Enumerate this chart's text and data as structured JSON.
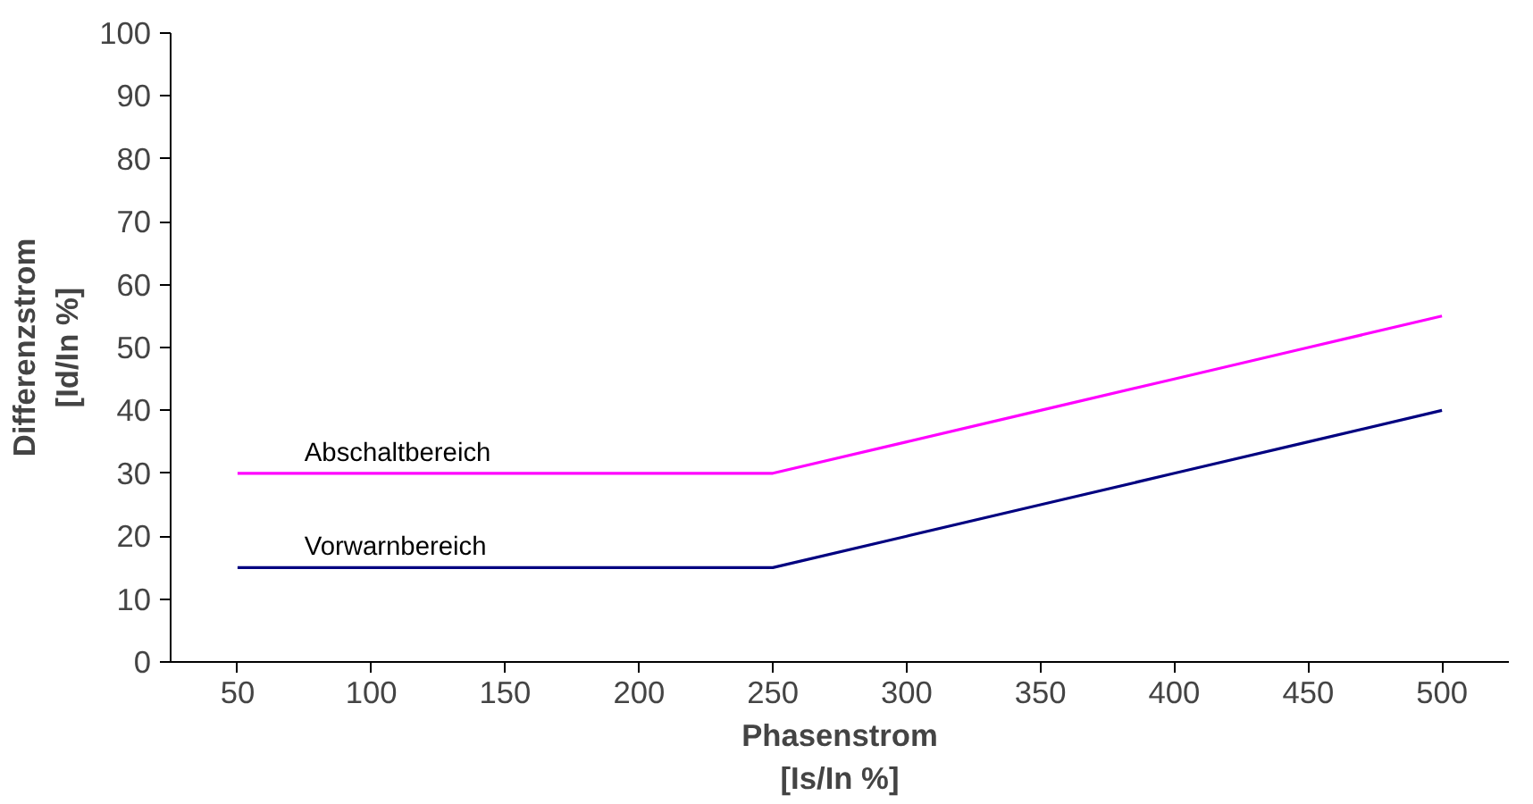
{
  "chart_data": {
    "type": "line",
    "categories": [
      "50",
      "100",
      "150",
      "200",
      "250",
      "300",
      "350",
      "400",
      "450",
      "500"
    ],
    "xlabel": "Phasenstrom\n[Is/In %]",
    "ylabel": "Differenzstrom\n[Id/In %]",
    "ylim": [
      0,
      100
    ],
    "yticks": [
      0,
      10,
      20,
      30,
      40,
      50,
      60,
      70,
      80,
      90,
      100
    ],
    "grid": false,
    "legend": false,
    "marker": "none",
    "line_style": "solid",
    "series": [
      {
        "name": "Abschaltbereich",
        "color": "#ff00ff",
        "values": [
          30,
          30,
          30,
          30,
          30,
          35,
          40,
          45,
          50,
          55
        ]
      },
      {
        "name": "Vorwarnbereich",
        "color": "#000080",
        "values": [
          15,
          15,
          15,
          15,
          15,
          20,
          25,
          30,
          35,
          40
        ]
      }
    ]
  }
}
